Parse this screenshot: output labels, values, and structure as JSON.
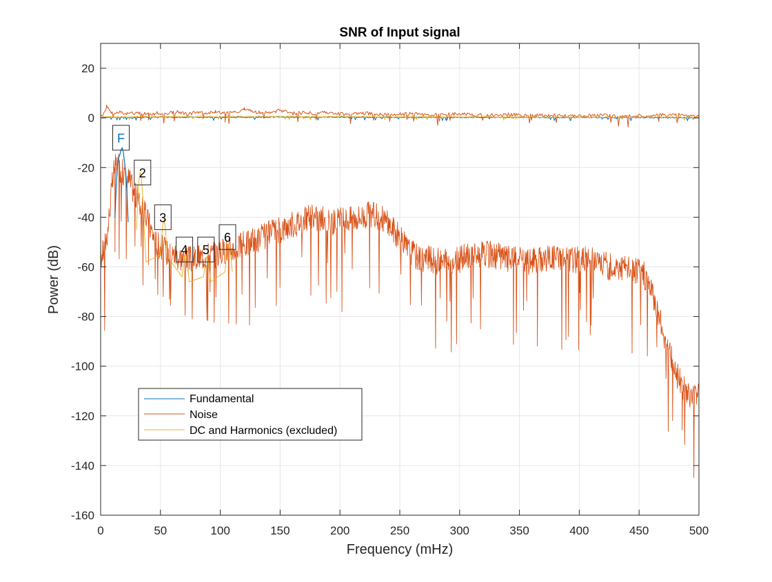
{
  "chart_data": {
    "type": "line",
    "title": "SNR of Input signal",
    "xlabel": "Frequency (mHz)",
    "ylabel": "Power (dB)",
    "xlim": [
      0,
      500
    ],
    "ylim": [
      -160,
      30
    ],
    "xticks": [
      0,
      50,
      100,
      150,
      200,
      250,
      300,
      350,
      400,
      450,
      500
    ],
    "yticks": [
      -160,
      -140,
      -120,
      -100,
      -80,
      -60,
      -40,
      -20,
      0,
      20
    ],
    "grid": true,
    "legend_position": "lower-left",
    "colors": {
      "fundamental": "#0072BD",
      "noise": "#D95319",
      "harmonics": "#EDB120"
    },
    "series": [
      {
        "name": "Fundamental",
        "color": "#0072BD",
        "x": [
          12,
          13,
          14,
          15,
          16,
          17,
          18,
          19,
          20,
          21,
          22,
          23
        ],
        "y": [
          -40,
          -28,
          -20,
          -16,
          -15,
          -13,
          -12,
          -14,
          -18,
          -22,
          -30,
          -42
        ]
      },
      {
        "name": "Noise",
        "color": "#D95319",
        "x": [
          0,
          3,
          6,
          9,
          12,
          24,
          28,
          40,
          46,
          58,
          62,
          66,
          72,
          78,
          90,
          96,
          100,
          115,
          125,
          135,
          145,
          155,
          165,
          175,
          185,
          195,
          205,
          215,
          225,
          235,
          245,
          255,
          265,
          275,
          285,
          295,
          305,
          315,
          325,
          335,
          345,
          355,
          365,
          375,
          385,
          395,
          405,
          415,
          425,
          435,
          445,
          452,
          458,
          462,
          466,
          470,
          474,
          478,
          482,
          486,
          490,
          494,
          498,
          500
        ],
        "y": [
          -57,
          -52,
          -45,
          -30,
          -18,
          -25,
          -30,
          -42,
          -50,
          -55,
          -55,
          -56,
          -57,
          -57,
          -55,
          -55,
          -54,
          -52,
          -50,
          -48,
          -46,
          -44,
          -42,
          -40,
          -41,
          -42,
          -41,
          -40,
          -39,
          -40,
          -45,
          -52,
          -56,
          -57,
          -58,
          -58,
          -56,
          -55,
          -55,
          -56,
          -57,
          -58,
          -57,
          -56,
          -56,
          -57,
          -57,
          -58,
          -60,
          -60,
          -61,
          -62,
          -66,
          -72,
          -78,
          -86,
          -92,
          -98,
          -104,
          -108,
          -111,
          -112,
          -110,
          -110
        ]
      },
      {
        "name": "DC and Harmonics (excluded)",
        "color": "#EDB120",
        "x": [
          30,
          31,
          32,
          33,
          34,
          35,
          36,
          37,
          38,
          50,
          51,
          52,
          53,
          54,
          55,
          56,
          68,
          69,
          70,
          71,
          72,
          73,
          74,
          86,
          87,
          88,
          89,
          90,
          91,
          92,
          104,
          105,
          106,
          107,
          108,
          109,
          110
        ],
        "y": [
          -45,
          -33,
          -25,
          -22,
          -24,
          -30,
          -40,
          -50,
          -58,
          -55,
          -48,
          -43,
          -41,
          -44,
          -50,
          -56,
          -64,
          -60,
          -56,
          -55,
          -57,
          -61,
          -66,
          -64,
          -60,
          -57,
          -56,
          -58,
          -62,
          -66,
          -62,
          -56,
          -52,
          -51,
          -53,
          -57,
          -62
        ]
      }
    ],
    "top_traces": [
      {
        "name": "Noise",
        "color": "#D95319",
        "x": [
          0,
          3,
          5,
          8,
          12,
          16,
          20,
          24,
          28,
          32,
          36,
          40,
          48,
          56,
          64,
          72,
          80,
          88,
          96,
          104,
          112,
          120,
          130,
          140,
          150,
          160,
          170,
          180,
          190,
          200,
          220,
          240,
          260,
          280,
          300,
          320,
          340,
          360,
          380,
          400,
          420,
          440,
          460,
          480,
          500
        ],
        "y": [
          0.5,
          2.0,
          5.0,
          2.5,
          1.8,
          2.5,
          1.6,
          2.4,
          1.5,
          2.2,
          1.8,
          1.4,
          2.0,
          1.7,
          2.5,
          1.5,
          2.3,
          1.6,
          2.4,
          1.8,
          2.1,
          3.6,
          2.2,
          2.0,
          3.0,
          1.8,
          2.2,
          1.6,
          2.4,
          1.5,
          1.8,
          1.4,
          1.6,
          1.2,
          1.6,
          1.0,
          1.3,
          0.9,
          1.1,
          0.8,
          1.0,
          0.7,
          0.9,
          1.4,
          0.4
        ]
      },
      {
        "name": "Fundamental",
        "color": "#0072BD",
        "x": [
          0,
          100,
          200,
          300,
          400,
          500
        ],
        "y": [
          0.2,
          0.3,
          0.3,
          0.2,
          0.2,
          0.1
        ]
      },
      {
        "name": "DC and Harmonics (excluded)",
        "color": "#EDB120",
        "x": [
          0,
          100,
          200,
          300,
          400,
          500
        ],
        "y": [
          0.4,
          0.6,
          0.5,
          0.4,
          0.3,
          0.3
        ]
      }
    ],
    "annotations": [
      {
        "label": "F",
        "x": 17,
        "y": -8,
        "color": "#0072BD"
      },
      {
        "label": "2",
        "x": 35,
        "y": -22,
        "color": "#000000"
      },
      {
        "label": "3",
        "x": 52,
        "y": -40,
        "color": "#000000"
      },
      {
        "label": "4",
        "x": 70,
        "y": -53,
        "color": "#000000"
      },
      {
        "label": "5",
        "x": 88,
        "y": -53,
        "color": "#000000"
      },
      {
        "label": "6",
        "x": 106,
        "y": -48,
        "color": "#000000"
      }
    ]
  }
}
